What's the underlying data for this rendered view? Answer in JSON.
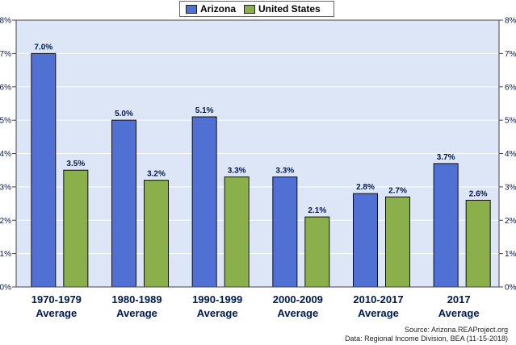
{
  "legend": {
    "series_a": "Arizona",
    "series_b": "United States"
  },
  "source": {
    "line1": "Source: Arizona.REAProject.org",
    "line2": "Data: Regional Income Division, BEA (11-15-2018)"
  },
  "colors": {
    "plot_bg": "#dde6f6",
    "arizona": "#5170d3",
    "united_states": "#8bb04b",
    "label": "#001a4d"
  },
  "chart_data": {
    "type": "bar",
    "categories": [
      [
        "1970-1979",
        "Average"
      ],
      [
        "1980-1989",
        "Average"
      ],
      [
        "1990-1999",
        "Average"
      ],
      [
        "2000-2009",
        "Average"
      ],
      [
        "2010-2017",
        "Average"
      ],
      [
        "2017",
        "Average"
      ]
    ],
    "series": [
      {
        "name": "Arizona",
        "values": [
          7.0,
          5.0,
          5.1,
          3.3,
          2.8,
          3.7
        ],
        "labels": [
          "7.0%",
          "5.0%",
          "5.1%",
          "3.3%",
          "2.8%",
          "3.7%"
        ]
      },
      {
        "name": "United States",
        "values": [
          3.5,
          3.2,
          3.3,
          2.1,
          2.7,
          2.6
        ],
        "labels": [
          "3.5%",
          "3.2%",
          "3.3%",
          "2.1%",
          "2.7%",
          "2.6%"
        ]
      }
    ],
    "y_ticks": [
      "0%",
      "1%",
      "2%",
      "3%",
      "4%",
      "5%",
      "6%",
      "7%",
      "8%"
    ],
    "ylim": [
      0,
      8
    ],
    "grid": true,
    "legend_position": "top-center"
  }
}
